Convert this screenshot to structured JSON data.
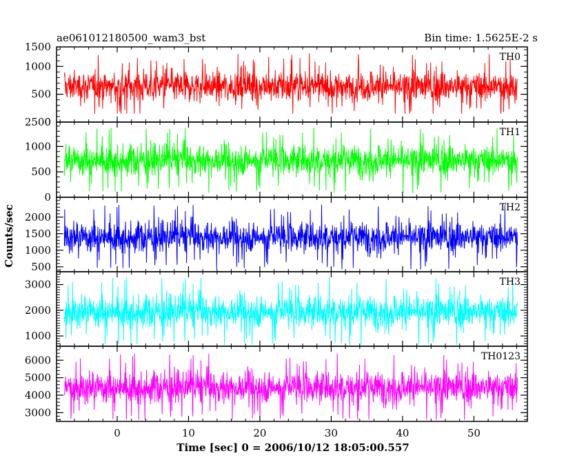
{
  "header": {
    "left_title": "ae061012180500_wam3_bst",
    "right_title": "Bin time: 1.5625E-2 s"
  },
  "chart_data": {
    "type": "line",
    "xlabel": "Time [sec] 0 = 2006/10/12 18:05:00.557",
    "ylabel": "Counts/sec",
    "xlim": [
      -8.5,
      57.5
    ],
    "x_range": [
      -7.4,
      56.1
    ],
    "x_ticks": [
      0,
      10,
      20,
      30,
      40,
      50
    ],
    "x_tick_labels": [
      "0",
      "10",
      "20",
      "30",
      "40",
      "50"
    ],
    "panels": [
      {
        "label": "TH0",
        "color": "#ff0000",
        "ylim": [
          0,
          1350
        ],
        "y_ticks": [
          500,
          1000
        ],
        "y_tick_labels": [
          "500",
          "1000"
        ],
        "top_tick_label": "1500",
        "bottom_tick_label": "0",
        "mean": 640,
        "noise": 230,
        "min": 150,
        "max": 1350
      },
      {
        "label": "TH1",
        "color": "#00ff00",
        "ylim": [
          0,
          1480
        ],
        "y_ticks": [
          500,
          1000
        ],
        "y_tick_labels": [
          "500",
          "1000"
        ],
        "top_tick_label": "2500",
        "bottom_tick_label": "0",
        "mean": 730,
        "noise": 250,
        "min": 80,
        "max": 1440
      },
      {
        "label": "TH2",
        "color": "#0000ff",
        "ylim": [
          350,
          2600
        ],
        "y_ticks": [
          500,
          1000,
          1500,
          2000
        ],
        "y_tick_labels": [
          "500",
          "1000",
          "1500",
          "2000"
        ],
        "top_tick_label": "",
        "bottom_tick_label": "",
        "mean": 1400,
        "noise": 380,
        "min": 380,
        "max": 2550
      },
      {
        "label": "TH3",
        "color": "#00ffff",
        "ylim": [
          600,
          3500
        ],
        "y_ticks": [
          1000,
          2000,
          3000
        ],
        "y_tick_labels": [
          "1000",
          "2000",
          "3000"
        ],
        "top_tick_label": "",
        "bottom_tick_label": "",
        "mean": 1950,
        "noise": 520,
        "min": 650,
        "max": 3450
      },
      {
        "label": "TH0123",
        "color": "#ff00ff",
        "ylim": [
          2500,
          6800
        ],
        "y_ticks": [
          3000,
          4000,
          5000,
          6000
        ],
        "y_tick_labels": [
          "3000",
          "4000",
          "5000",
          "6000"
        ],
        "top_tick_label": "",
        "bottom_tick_label": "",
        "mean": 4450,
        "noise": 750,
        "min": 2600,
        "max": 6750
      }
    ]
  }
}
